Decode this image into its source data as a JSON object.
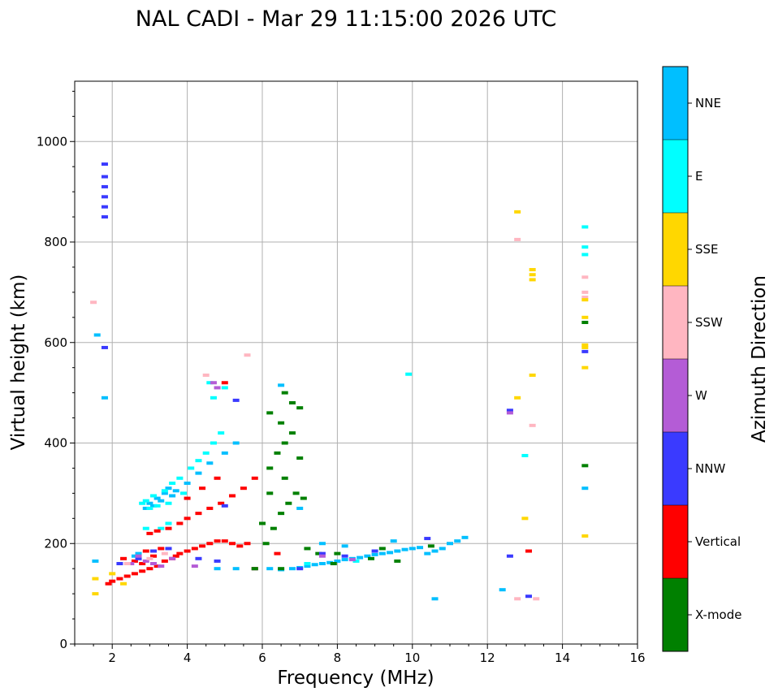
{
  "chart_data": {
    "type": "scatter",
    "title": "NAL CADI - Mar 29 11:15:00 2026 UTC",
    "xlabel": "Frequency (MHz)",
    "ylabel": "Virtual height (km)",
    "xlim": [
      1,
      16
    ],
    "ylim": [
      0,
      1120
    ],
    "xticks": [
      2,
      4,
      6,
      8,
      10,
      12,
      14,
      16
    ],
    "yticks": [
      0,
      200,
      400,
      600,
      800,
      1000
    ],
    "grid": true,
    "colorbar": {
      "label": "Azimuth Direction",
      "categories": [
        {
          "name": "X-mode",
          "color": "#008000"
        },
        {
          "name": "Vertical",
          "color": "#ff0000"
        },
        {
          "name": "NNW",
          "color": "#3a3aff"
        },
        {
          "name": "W",
          "color": "#b45cd6"
        },
        {
          "name": "SSW",
          "color": "#ffb6c1"
        },
        {
          "name": "SSE",
          "color": "#ffd700"
        },
        {
          "name": "E",
          "color": "#00ffff"
        },
        {
          "name": "NNE",
          "color": "#00bfff"
        }
      ]
    },
    "series": [
      {
        "name": "NNE",
        "description": "E-region / F1 trace and 2nd hop trace",
        "points": [
          [
            1.55,
            165
          ],
          [
            2.6,
            175
          ],
          [
            2.7,
            180
          ],
          [
            2.9,
            270
          ],
          [
            3.0,
            280
          ],
          [
            3.1,
            275
          ],
          [
            3.2,
            290
          ],
          [
            3.3,
            285
          ],
          [
            3.4,
            300
          ],
          [
            3.5,
            310
          ],
          [
            3.6,
            295
          ],
          [
            3.7,
            305
          ],
          [
            4.0,
            320
          ],
          [
            4.3,
            340
          ],
          [
            4.6,
            360
          ],
          [
            5.0,
            380
          ],
          [
            5.3,
            400
          ],
          [
            4.8,
            150
          ],
          [
            5.3,
            150
          ],
          [
            5.8,
            150
          ],
          [
            6.2,
            150
          ],
          [
            6.5,
            148
          ],
          [
            6.8,
            150
          ],
          [
            7.0,
            152
          ],
          [
            7.2,
            155
          ],
          [
            7.4,
            158
          ],
          [
            7.6,
            160
          ],
          [
            7.8,
            162
          ],
          [
            8.0,
            165
          ],
          [
            8.2,
            168
          ],
          [
            8.4,
            170
          ],
          [
            8.6,
            172
          ],
          [
            8.8,
            175
          ],
          [
            9.0,
            178
          ],
          [
            9.2,
            180
          ],
          [
            9.4,
            182
          ],
          [
            9.6,
            185
          ],
          [
            9.8,
            188
          ],
          [
            10.0,
            190
          ],
          [
            10.2,
            192
          ],
          [
            10.4,
            180
          ],
          [
            10.6,
            185
          ],
          [
            10.8,
            190
          ],
          [
            11.0,
            200
          ],
          [
            11.2,
            205
          ],
          [
            11.4,
            212
          ],
          [
            7.6,
            200
          ],
          [
            8.2,
            195
          ],
          [
            9.5,
            205
          ],
          [
            10.6,
            90
          ],
          [
            12.4,
            108
          ],
          [
            14.6,
            310
          ],
          [
            7.0,
            270
          ],
          [
            6.5,
            515
          ],
          [
            1.8,
            490
          ],
          [
            1.6,
            615
          ]
        ]
      },
      {
        "name": "E",
        "description": "Cyan trace points",
        "points": [
          [
            2.8,
            280
          ],
          [
            2.9,
            285
          ],
          [
            3.0,
            270
          ],
          [
            3.1,
            295
          ],
          [
            3.2,
            275
          ],
          [
            3.4,
            305
          ],
          [
            3.5,
            280
          ],
          [
            3.6,
            320
          ],
          [
            3.8,
            330
          ],
          [
            3.9,
            300
          ],
          [
            4.1,
            350
          ],
          [
            4.3,
            365
          ],
          [
            4.5,
            380
          ],
          [
            4.7,
            400
          ],
          [
            4.9,
            420
          ],
          [
            4.6,
            520
          ],
          [
            4.7,
            490
          ],
          [
            5.0,
            510
          ],
          [
            3.3,
            230
          ],
          [
            3.5,
            240
          ],
          [
            2.9,
            230
          ],
          [
            7.2,
            160
          ],
          [
            8.5,
            165
          ],
          [
            9.9,
            537
          ],
          [
            14.6,
            830
          ],
          [
            14.6,
            790
          ],
          [
            14.6,
            775
          ],
          [
            13.0,
            375
          ]
        ]
      },
      {
        "name": "Vertical",
        "description": "O-mode vertical echoes",
        "points": [
          [
            1.9,
            120
          ],
          [
            2.0,
            125
          ],
          [
            2.2,
            130
          ],
          [
            2.4,
            135
          ],
          [
            2.6,
            140
          ],
          [
            2.8,
            145
          ],
          [
            3.0,
            150
          ],
          [
            3.2,
            155
          ],
          [
            3.4,
            165
          ],
          [
            3.6,
            170
          ],
          [
            3.8,
            180
          ],
          [
            4.0,
            185
          ],
          [
            4.2,
            190
          ],
          [
            4.4,
            195
          ],
          [
            4.6,
            200
          ],
          [
            4.8,
            205
          ],
          [
            5.0,
            205
          ],
          [
            5.2,
            200
          ],
          [
            5.4,
            195
          ],
          [
            5.6,
            200
          ],
          [
            3.0,
            220
          ],
          [
            3.2,
            225
          ],
          [
            3.5,
            230
          ],
          [
            3.8,
            240
          ],
          [
            4.0,
            250
          ],
          [
            4.3,
            260
          ],
          [
            4.6,
            270
          ],
          [
            4.9,
            280
          ],
          [
            5.2,
            295
          ],
          [
            5.5,
            310
          ],
          [
            5.8,
            330
          ],
          [
            4.0,
            290
          ],
          [
            4.4,
            310
          ],
          [
            4.8,
            330
          ],
          [
            2.3,
            170
          ],
          [
            2.6,
            165
          ],
          [
            2.8,
            160
          ],
          [
            3.3,
            190
          ],
          [
            3.7,
            175
          ],
          [
            2.9,
            185
          ],
          [
            3.1,
            175
          ],
          [
            5.0,
            520
          ],
          [
            13.1,
            185
          ],
          [
            5.8,
            150
          ],
          [
            6.4,
            180
          ]
        ]
      },
      {
        "name": "X-mode",
        "description": "X-mode echoes",
        "points": [
          [
            5.8,
            150
          ],
          [
            6.1,
            200
          ],
          [
            6.3,
            230
          ],
          [
            6.5,
            260
          ],
          [
            6.7,
            280
          ],
          [
            6.9,
            300
          ],
          [
            7.1,
            290
          ],
          [
            6.2,
            350
          ],
          [
            6.4,
            380
          ],
          [
            6.6,
            400
          ],
          [
            6.8,
            420
          ],
          [
            6.5,
            440
          ],
          [
            6.2,
            460
          ],
          [
            6.6,
            500
          ],
          [
            6.8,
            480
          ],
          [
            7.0,
            470
          ],
          [
            6.0,
            240
          ],
          [
            6.2,
            300
          ],
          [
            6.6,
            330
          ],
          [
            7.0,
            370
          ],
          [
            7.5,
            180
          ],
          [
            7.9,
            160
          ],
          [
            8.9,
            170
          ],
          [
            9.6,
            165
          ],
          [
            10.5,
            195
          ],
          [
            14.6,
            640
          ],
          [
            14.6,
            355
          ],
          [
            6.5,
            150
          ],
          [
            7.2,
            190
          ],
          [
            8.0,
            180
          ],
          [
            9.2,
            190
          ]
        ]
      },
      {
        "name": "NNW",
        "description": "NNW echoes",
        "points": [
          [
            1.8,
            955
          ],
          [
            1.8,
            930
          ],
          [
            1.8,
            910
          ],
          [
            1.8,
            890
          ],
          [
            1.8,
            870
          ],
          [
            1.8,
            850
          ],
          [
            1.8,
            590
          ],
          [
            2.2,
            160
          ],
          [
            2.7,
            170
          ],
          [
            3.1,
            185
          ],
          [
            3.5,
            190
          ],
          [
            4.3,
            170
          ],
          [
            4.8,
            165
          ],
          [
            7.0,
            150
          ],
          [
            7.6,
            180
          ],
          [
            8.2,
            175
          ],
          [
            9.0,
            185
          ],
          [
            10.4,
            210
          ],
          [
            12.6,
            175
          ],
          [
            12.6,
            465
          ],
          [
            13.1,
            95
          ],
          [
            14.6,
            582
          ],
          [
            5.0,
            275
          ],
          [
            5.3,
            485
          ]
        ]
      },
      {
        "name": "W",
        "description": "W echoes",
        "points": [
          [
            2.5,
            160
          ],
          [
            2.7,
            175
          ],
          [
            2.9,
            165
          ],
          [
            3.1,
            160
          ],
          [
            3.3,
            155
          ],
          [
            3.6,
            170
          ],
          [
            4.2,
            155
          ],
          [
            4.7,
            520
          ],
          [
            4.8,
            510
          ],
          [
            7.6,
            175
          ],
          [
            8.4,
            168
          ],
          [
            12.6,
            460
          ]
        ]
      },
      {
        "name": "SSW",
        "description": "SSW echoes",
        "points": [
          [
            1.5,
            680
          ],
          [
            2.4,
            160
          ],
          [
            3.0,
            170
          ],
          [
            3.4,
            180
          ],
          [
            5.6,
            575
          ],
          [
            4.5,
            535
          ],
          [
            12.8,
            805
          ],
          [
            13.2,
            435
          ],
          [
            13.3,
            90
          ],
          [
            12.8,
            90
          ],
          [
            14.6,
            730
          ],
          [
            14.6,
            700
          ],
          [
            14.6,
            690
          ]
        ]
      },
      {
        "name": "SSE",
        "description": "SSE echoes",
        "points": [
          [
            1.55,
            130
          ],
          [
            1.55,
            100
          ],
          [
            2.3,
            120
          ],
          [
            12.8,
            860
          ],
          [
            12.8,
            490
          ],
          [
            13.0,
            250
          ],
          [
            13.2,
            745
          ],
          [
            13.2,
            735
          ],
          [
            13.2,
            725
          ],
          [
            13.2,
            535
          ],
          [
            14.6,
            685
          ],
          [
            14.6,
            650
          ],
          [
            14.6,
            595
          ],
          [
            14.6,
            590
          ],
          [
            14.6,
            550
          ],
          [
            14.6,
            215
          ],
          [
            2.0,
            140
          ]
        ]
      }
    ]
  }
}
